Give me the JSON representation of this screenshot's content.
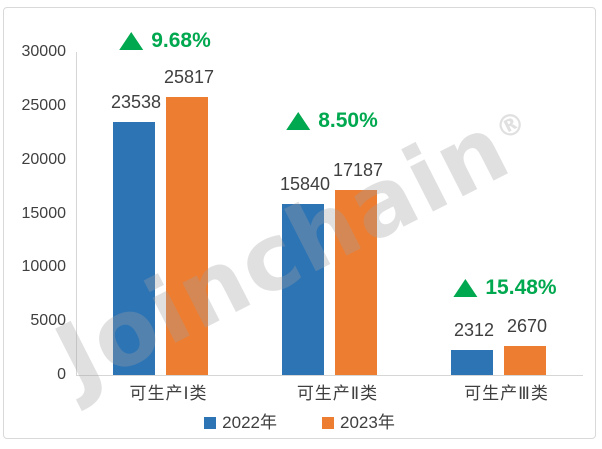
{
  "watermark": {
    "text": "Joinchain",
    "reg": "®"
  },
  "colors": {
    "series_2022": "#2D74B5",
    "series_2023": "#ED7D31",
    "growth_green": "#00A84F",
    "axis_line": "#D6D6D6",
    "text": "#3F3F3F",
    "panel_border": "#D9D9D9"
  },
  "chart_data": {
    "type": "bar",
    "title": "",
    "categories": [
      "可生产Ⅰ类",
      "可生产Ⅱ类",
      "可生产Ⅲ类"
    ],
    "series": [
      {
        "name": "2022年",
        "color": "#2D74B5",
        "values": [
          23538,
          15840,
          2312
        ]
      },
      {
        "name": "2023年",
        "color": "#ED7D31",
        "values": [
          25817,
          17187,
          2670
        ]
      }
    ],
    "growth_annotations": [
      {
        "label": "9.68%",
        "x": 161,
        "y": 33
      },
      {
        "label": "8.50%",
        "x": 328,
        "y": 113
      },
      {
        "label": "15.48%",
        "x": 501,
        "y": 280
      }
    ],
    "yticks": [
      0,
      5000,
      10000,
      15000,
      20000,
      25000,
      30000
    ],
    "ylim": [
      0,
      30000
    ],
    "grid": false,
    "legend_position": "bottom",
    "value_labels": true
  }
}
